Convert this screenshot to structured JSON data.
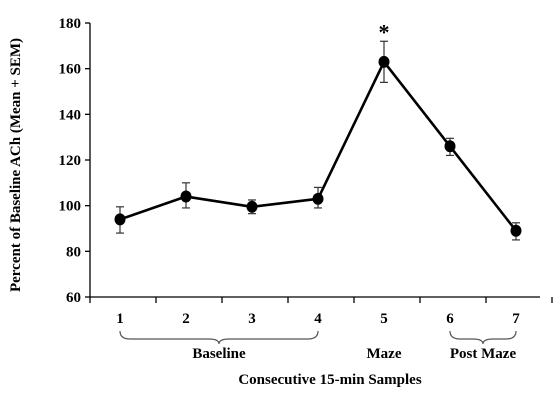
{
  "chart_data": {
    "type": "line",
    "x": [
      1,
      2,
      3,
      4,
      5,
      6,
      7
    ],
    "xtick_labels": [
      "1",
      "2",
      "3",
      "4",
      "5",
      "6",
      "7"
    ],
    "series": [
      {
        "values": [
          94,
          104,
          99.5,
          103,
          163,
          126,
          89
        ],
        "sem_upper": [
          99.5,
          110,
          102.5,
          108,
          172,
          129.5,
          92.5
        ],
        "sem_lower": [
          88,
          99,
          96.5,
          99,
          154,
          122,
          85
        ],
        "color": "#000000"
      }
    ],
    "xlabel": "Consecutive 15-min Samples",
    "ylabel": "Percent of Baseline ACh (Mean + SEM)",
    "ylim": [
      60,
      180
    ],
    "yticks": [
      60,
      80,
      100,
      120,
      140,
      160,
      180
    ],
    "ytick_labels": [
      "60",
      "80",
      "100",
      "120",
      "140",
      "160",
      "180"
    ],
    "grid": false,
    "groups": [
      {
        "label": "Baseline",
        "from": 1,
        "to": 4
      },
      {
        "label": "Maze",
        "from": 5,
        "to": 5
      },
      {
        "label": "Post Maze",
        "from": 6,
        "to": 7
      }
    ],
    "annotations": [
      {
        "text": "*",
        "x": 5
      }
    ]
  }
}
